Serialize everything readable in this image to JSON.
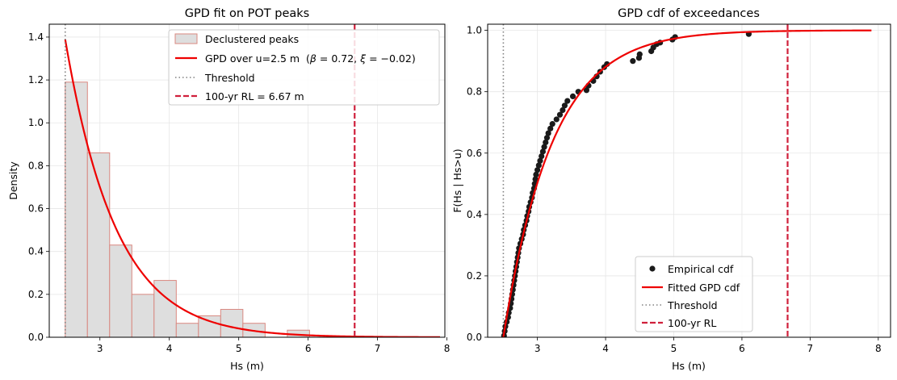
{
  "chart_data": [
    {
      "type": "histogram+line",
      "title": "GPD fit on POT peaks",
      "xlabel": "Hs (m)",
      "ylabel": "Density",
      "xlim": [
        2.27,
        7.97
      ],
      "ylim": [
        0,
        1.46
      ],
      "xticks": [
        "3",
        "4",
        "5",
        "6",
        "7",
        "8"
      ],
      "yticks": [
        "0.0",
        "0.2",
        "0.4",
        "0.6",
        "0.8",
        "1.0",
        "1.2",
        "1.4"
      ],
      "grid": true,
      "legend_position": "top-right",
      "histogram": {
        "name": "Declustered peaks",
        "bin_edges": [
          2.5,
          2.82,
          3.14,
          3.46,
          3.78,
          4.1,
          4.42,
          4.74,
          5.06,
          5.38,
          5.7,
          6.02
        ],
        "densities": [
          1.19,
          0.86,
          0.43,
          0.2,
          0.265,
          0.065,
          0.1,
          0.13,
          0.065,
          0.0,
          0.033
        ],
        "fill_color": "#dedede",
        "edge_color": "#d98880"
      },
      "fit_curve": {
        "name_prefix": "GPD over u=2.5 m  (",
        "beta_label": "β",
        "beta_value": "0.72",
        "xi_label": "ξ",
        "xi_value": "−0.02",
        "name_suffix": ")",
        "threshold": 2.5,
        "beta": 0.72,
        "xi": -0.02,
        "x_max": 7.9,
        "color": "#ee0000"
      },
      "threshold_line": {
        "name": "Threshold",
        "x": 2.5,
        "color": "#808080"
      },
      "return_level_line": {
        "name": "100-yr RL = 6.67 m",
        "x": 6.67,
        "color": "#d0203c"
      }
    },
    {
      "type": "scatter+line",
      "title": "GPD cdf of exceedances",
      "xlabel": "Hs (m)",
      "ylabel": "F(Hs | Hs>u)",
      "xlim": [
        2.27,
        8.18
      ],
      "ylim": [
        0,
        1.02
      ],
      "xticks": [
        "3",
        "4",
        "5",
        "6",
        "7",
        "8"
      ],
      "yticks": [
        "0.0",
        "0.2",
        "0.4",
        "0.6",
        "0.8",
        "1.0"
      ],
      "grid": true,
      "legend_position": "bottom-center",
      "empirical": {
        "name": "Empirical cdf",
        "color": "#1a1a1a",
        "points": [
          [
            2.51,
            0.005
          ],
          [
            2.52,
            0.02
          ],
          [
            2.53,
            0.035
          ],
          [
            2.55,
            0.05
          ],
          [
            2.57,
            0.065
          ],
          [
            2.58,
            0.08
          ],
          [
            2.6,
            0.095
          ],
          [
            2.61,
            0.11
          ],
          [
            2.62,
            0.125
          ],
          [
            2.63,
            0.14
          ],
          [
            2.64,
            0.155
          ],
          [
            2.65,
            0.17
          ],
          [
            2.66,
            0.185
          ],
          [
            2.67,
            0.2
          ],
          [
            2.68,
            0.215
          ],
          [
            2.69,
            0.23
          ],
          [
            2.7,
            0.245
          ],
          [
            2.71,
            0.26
          ],
          [
            2.72,
            0.275
          ],
          [
            2.73,
            0.29
          ],
          [
            2.75,
            0.305
          ],
          [
            2.77,
            0.32
          ],
          [
            2.79,
            0.335
          ],
          [
            2.8,
            0.35
          ],
          [
            2.82,
            0.365
          ],
          [
            2.84,
            0.38
          ],
          [
            2.85,
            0.395
          ],
          [
            2.87,
            0.41
          ],
          [
            2.88,
            0.425
          ],
          [
            2.9,
            0.44
          ],
          [
            2.92,
            0.455
          ],
          [
            2.93,
            0.47
          ],
          [
            2.95,
            0.485
          ],
          [
            2.96,
            0.5
          ],
          [
            2.97,
            0.515
          ],
          [
            2.98,
            0.53
          ],
          [
            3.0,
            0.545
          ],
          [
            3.02,
            0.56
          ],
          [
            3.04,
            0.575
          ],
          [
            3.06,
            0.59
          ],
          [
            3.08,
            0.605
          ],
          [
            3.1,
            0.62
          ],
          [
            3.12,
            0.635
          ],
          [
            3.14,
            0.65
          ],
          [
            3.16,
            0.665
          ],
          [
            3.19,
            0.68
          ],
          [
            3.22,
            0.695
          ],
          [
            3.28,
            0.71
          ],
          [
            3.33,
            0.725
          ],
          [
            3.37,
            0.74
          ],
          [
            3.4,
            0.755
          ],
          [
            3.44,
            0.77
          ],
          [
            3.52,
            0.785
          ],
          [
            3.6,
            0.8
          ],
          [
            3.72,
            0.805
          ],
          [
            3.75,
            0.82
          ],
          [
            3.82,
            0.835
          ],
          [
            3.87,
            0.85
          ],
          [
            3.92,
            0.865
          ],
          [
            3.98,
            0.88
          ],
          [
            4.02,
            0.89
          ],
          [
            4.4,
            0.9
          ],
          [
            4.49,
            0.91
          ],
          [
            4.5,
            0.922
          ],
          [
            4.67,
            0.932
          ],
          [
            4.7,
            0.944
          ],
          [
            4.75,
            0.955
          ],
          [
            4.8,
            0.96
          ],
          [
            4.98,
            0.97
          ],
          [
            5.02,
            0.978
          ],
          [
            6.1,
            0.988
          ]
        ]
      },
      "fit_curve": {
        "name": "Fitted GPD cdf",
        "threshold": 2.5,
        "beta": 0.72,
        "xi": -0.02,
        "x_max": 7.9,
        "color": "#ee0000"
      },
      "threshold_line": {
        "name": "Threshold",
        "x": 2.5,
        "color": "#808080"
      },
      "return_level_line": {
        "name": "100-yr RL",
        "x": 6.67,
        "color": "#d0203c"
      }
    }
  ]
}
